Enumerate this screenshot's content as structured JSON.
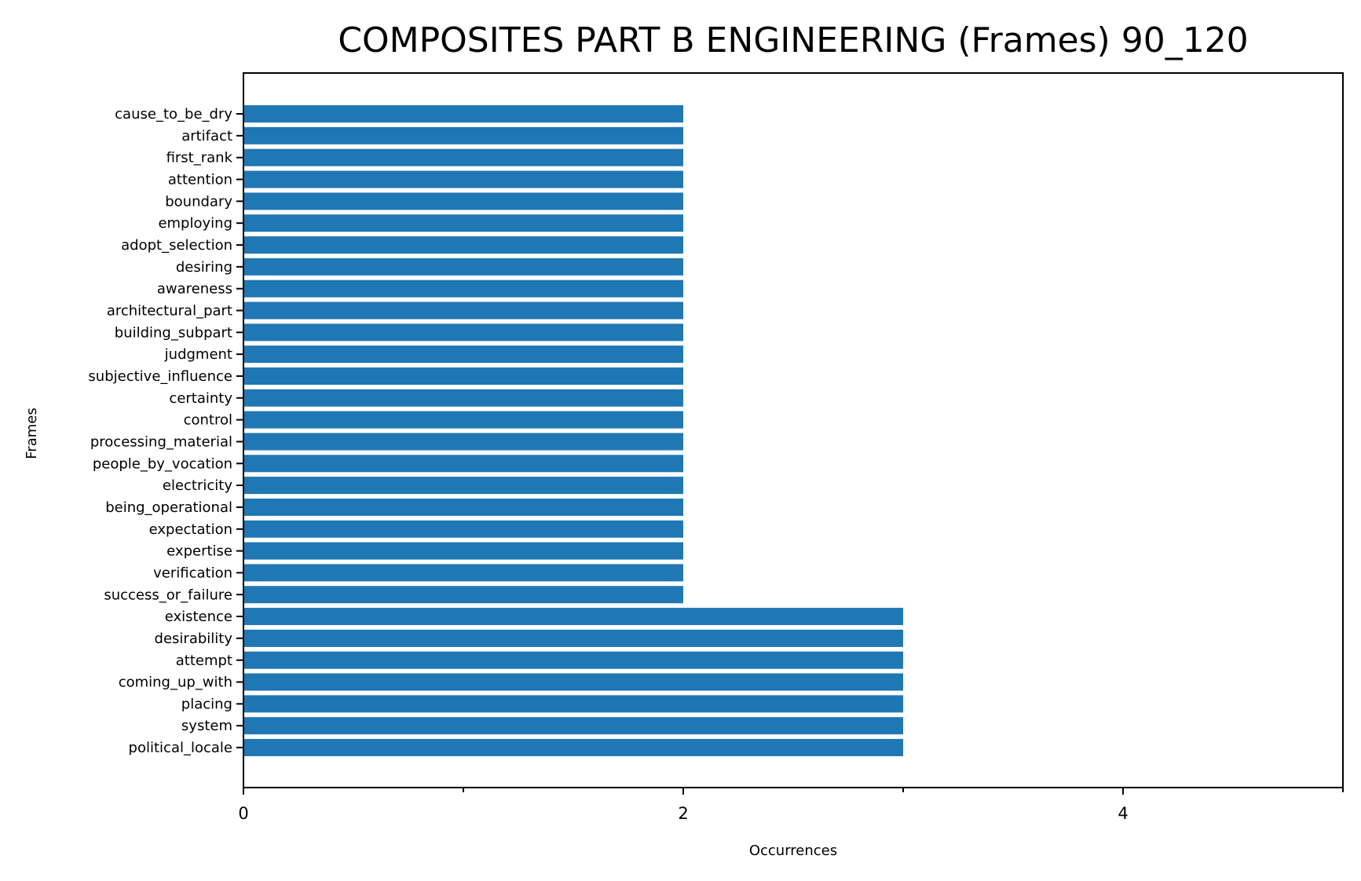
{
  "chart_data": {
    "type": "bar",
    "orientation": "horizontal",
    "title": "COMPOSITES PART B ENGINEERING (Frames) 90_120",
    "xlabel": "Occurrences",
    "ylabel": "Frames",
    "xlim": [
      0,
      5
    ],
    "xticks": [
      0,
      2,
      4
    ],
    "minor_xticks": [
      1,
      3,
      5
    ],
    "grid": false,
    "bar_color": "#1f77b4",
    "categories": [
      "cause_to_be_dry",
      "artifact",
      "first_rank",
      "attention",
      "boundary",
      "employing",
      "adopt_selection",
      "desiring",
      "awareness",
      "architectural_part",
      "building_subpart",
      "judgment",
      "subjective_influence",
      "certainty",
      "control",
      "processing_material",
      "people_by_vocation",
      "electricity",
      "being_operational",
      "expectation",
      "expertise",
      "verification",
      "success_or_failure",
      "existence",
      "desirability",
      "attempt",
      "coming_up_with",
      "placing",
      "system",
      "political_locale"
    ],
    "values": [
      2,
      2,
      2,
      2,
      2,
      2,
      2,
      2,
      2,
      2,
      2,
      2,
      2,
      2,
      2,
      2,
      2,
      2,
      2,
      2,
      2,
      2,
      2,
      3,
      3,
      3,
      3,
      3,
      3,
      3
    ]
  }
}
